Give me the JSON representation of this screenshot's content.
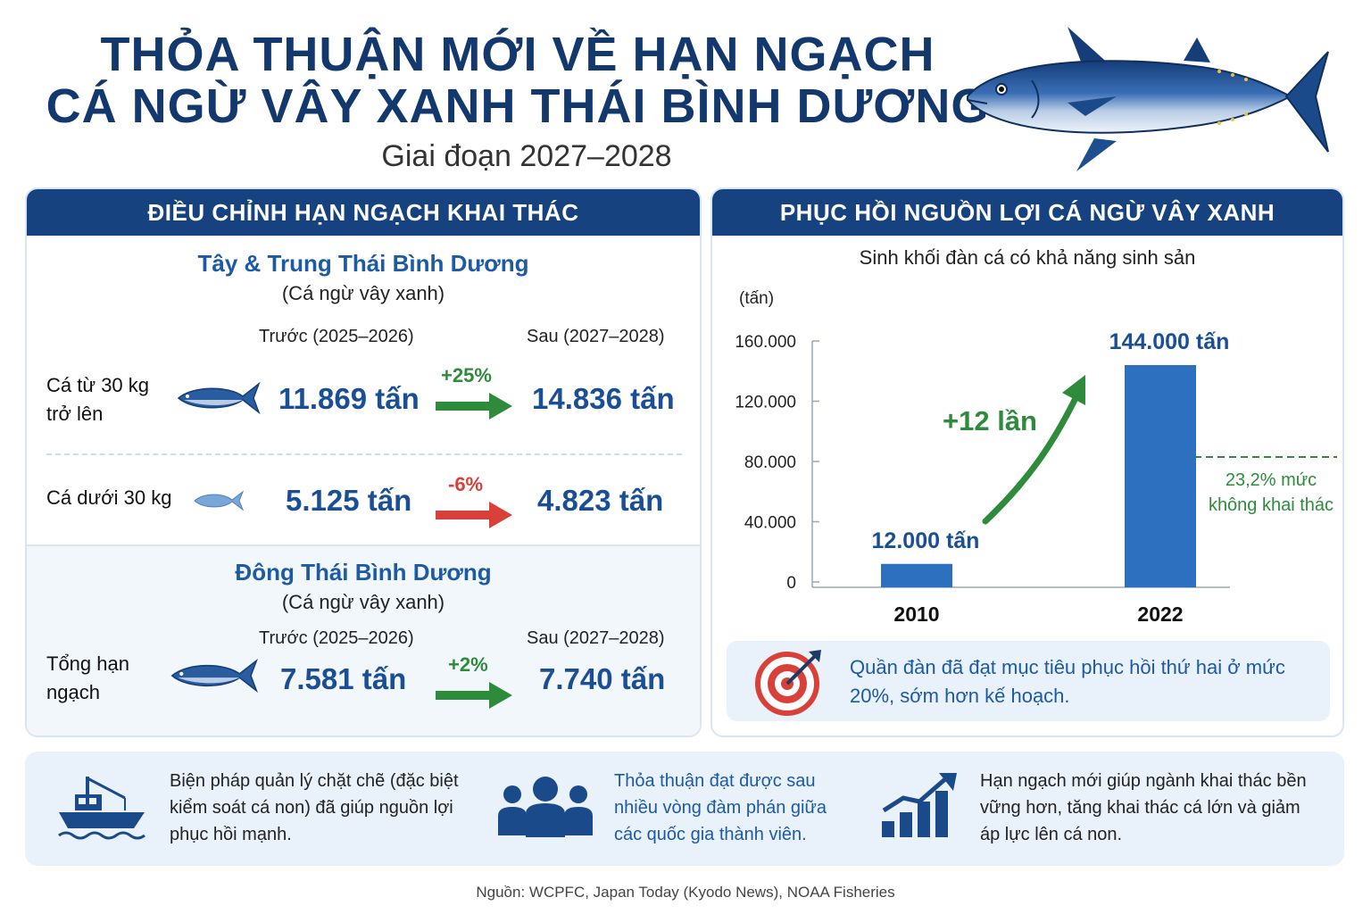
{
  "header": {
    "title_line1": "THỎA THUẬN MỚI VỀ HẠN NGẠCH",
    "title_line2": "CÁ NGỪ VÂY XANH THÁI BÌNH DƯƠNG",
    "subtitle": "Giai đoạn 2027–2028"
  },
  "quota": {
    "heading": "ĐIỀU CHỈNH HẠN NGẠCH KHAI THÁC",
    "west": {
      "region": "Tây & Trung Thái Bình Dương",
      "species": "(Cá ngừ vây xanh)",
      "before_label": "Trước (2025–2026)",
      "after_label": "Sau (2027–2028)",
      "rows": [
        {
          "label": "Cá từ 30 kg trở lên",
          "before": "11.869 tấn",
          "change": "+25%",
          "after": "14.836 tấn",
          "direction": "up"
        },
        {
          "label": "Cá dưới 30 kg",
          "before": "5.125 tấn",
          "change": "-6%",
          "after": "4.823 tấn",
          "direction": "down"
        }
      ]
    },
    "east": {
      "region": "Đông Thái Bình Dương",
      "species": "(Cá ngừ vây xanh)",
      "before_label": "Trước (2025–2026)",
      "after_label": "Sau (2027–2028)",
      "rows": [
        {
          "label": "Tổng hạn ngạch",
          "before": "7.581 tấn",
          "change": "+2%",
          "after": "7.740 tấn",
          "direction": "up"
        }
      ]
    }
  },
  "recovery": {
    "heading": "PHỤC HỒI NGUỒN LỢI CÁ NGỪ VÂY XANH",
    "goal_text": "Quần đàn đã đạt mục tiêu phục hồi thứ hai ở mức 20%, sớm hơn kế hoạch."
  },
  "chart_data": {
    "type": "bar",
    "title": "Sinh khối đàn cá có khả năng sinh sản",
    "ylabel": "(tấn)",
    "categories": [
      "2010",
      "2022"
    ],
    "values": [
      12000,
      144000
    ],
    "value_labels": [
      "12.000 tấn",
      "144.000 tấn"
    ],
    "ylim": [
      0,
      160000
    ],
    "yticks": [
      0,
      40000,
      80000,
      120000,
      160000
    ],
    "ytick_labels": [
      "0",
      "40.000",
      "80.000",
      "120.000",
      "160.000"
    ],
    "growth_label": "+12 lần",
    "reference_label": "23,2% mức không khai thác",
    "bar_color": "#2e70c0"
  },
  "notes": [
    {
      "text": "Biện pháp quản lý chặt chẽ (đặc biệt kiểm soát cá non) đã giúp nguồn lợi phục hồi mạnh.",
      "icon": "fishing-boat-icon"
    },
    {
      "text": "Thỏa thuận đạt được sau nhiều vòng đàm phán giữa các quốc gia thành viên.",
      "icon": "people-group-icon"
    },
    {
      "text": "Hạn ngạch mới giúp ngành khai thác bền vững hơn, tăng khai thác cá lớn và giảm áp lực lên cá non.",
      "icon": "growth-chart-icon"
    }
  ],
  "source": "Nguồn: WCPFC, Japan Today (Kyodo News), NOAA Fisheries",
  "colors": {
    "navy": "#16427f",
    "blue": "#1d5aa5",
    "green": "#2e8b3c",
    "red": "#d9403a"
  }
}
